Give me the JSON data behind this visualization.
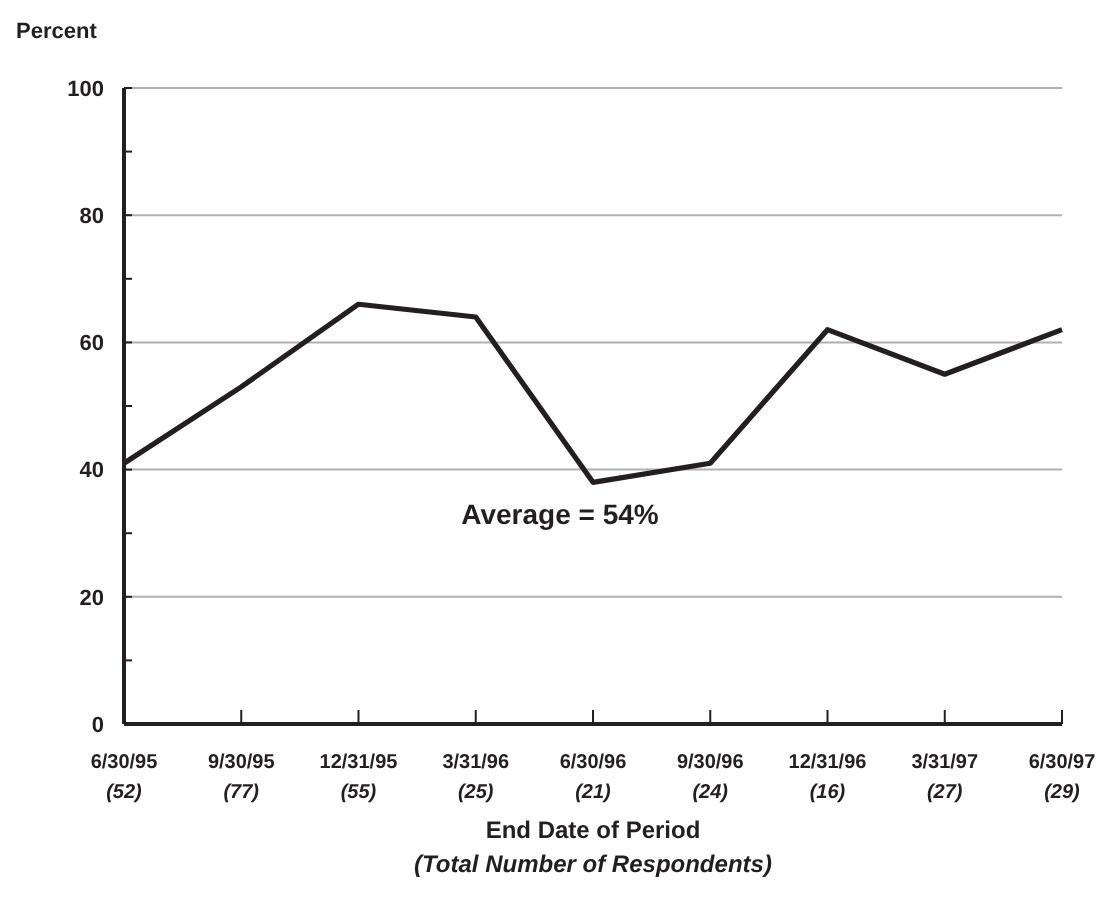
{
  "chart_data": {
    "type": "line",
    "ylabel": "Percent",
    "xlabel": "End Date of Period\n(Total Number of Respondents)",
    "categories": [
      "6/30/95\n(52)",
      "9/30/95\n(77)",
      "12/31/95\n(55)",
      "3/31/96\n(25)",
      "6/30/96\n(21)",
      "9/30/96\n(24)",
      "12/31/96\n(16)",
      "3/31/97\n(27)",
      "6/30/97\n(29)"
    ],
    "series": [
      {
        "color": "#231f20",
        "values": [
          41,
          53,
          66,
          64,
          38,
          41,
          62,
          55,
          62
        ]
      }
    ],
    "ylim": [
      0,
      100
    ],
    "yticks": [
      0,
      {
        "value": 10,
        "label": null
      },
      20,
      {
        "value": 30,
        "label": null
      },
      40,
      {
        "value": 50,
        "label": null
      },
      60,
      {
        "value": 70,
        "label": null
      },
      80,
      {
        "value": 90,
        "label": null
      },
      100
    ],
    "grid": "y",
    "marker": "none",
    "line_style": "solid",
    "annotations": [
      "Average = 54%"
    ]
  }
}
